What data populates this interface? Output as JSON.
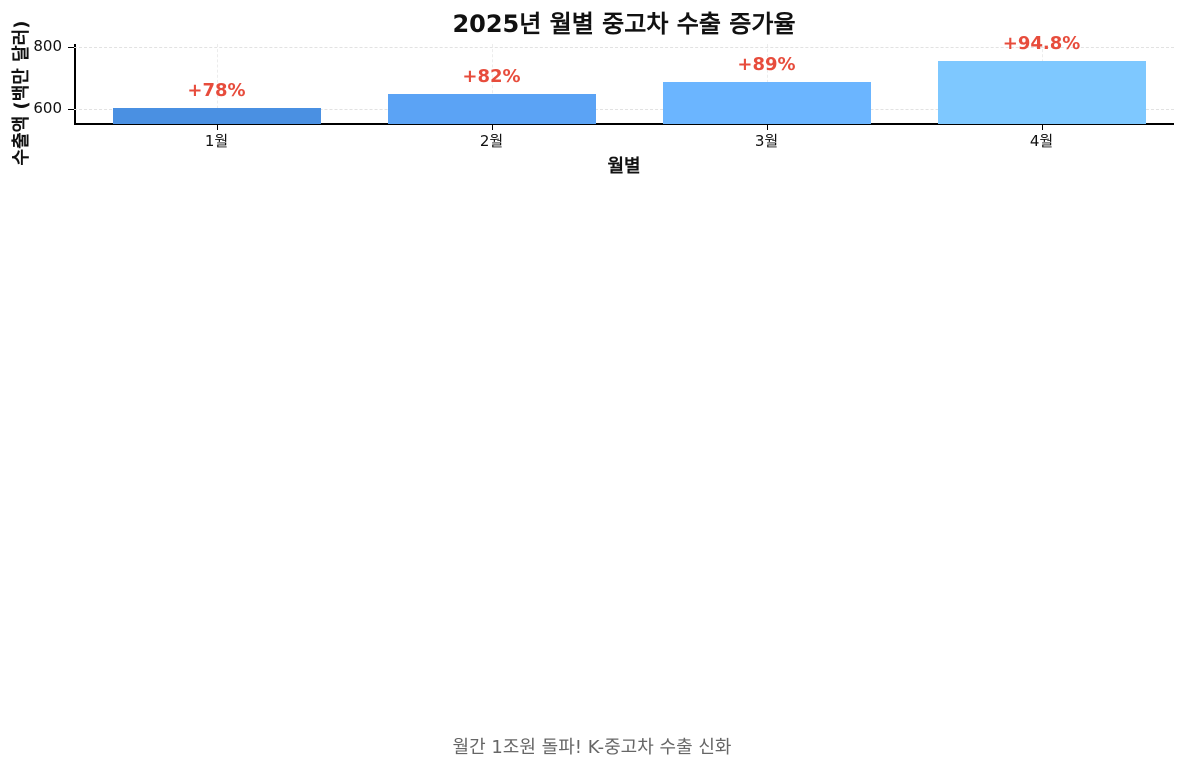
{
  "chart_data": {
    "type": "bar",
    "title": "2025년 월별 중고차 수출 증가율",
    "xlabel": "월별",
    "ylabel": "수출액 (백만 달러)",
    "categories": [
      "1월",
      "2월",
      "3월",
      "4월"
    ],
    "values": [
      604,
      648,
      689,
      756
    ],
    "annotations": [
      "+78%",
      "+82%",
      "+89%",
      "+94.8%"
    ],
    "colors": [
      "#4a90e2",
      "#5ba3f5",
      "#6bb5ff",
      "#7ec8ff"
    ],
    "annotation_color": "#e74c3c",
    "ylim": [
      552,
      810
    ],
    "yticks": [
      600,
      800
    ],
    "grid": true,
    "legend": null
  },
  "subtitle": "월간 1조원 돌파! K-중고차 수출 신화"
}
